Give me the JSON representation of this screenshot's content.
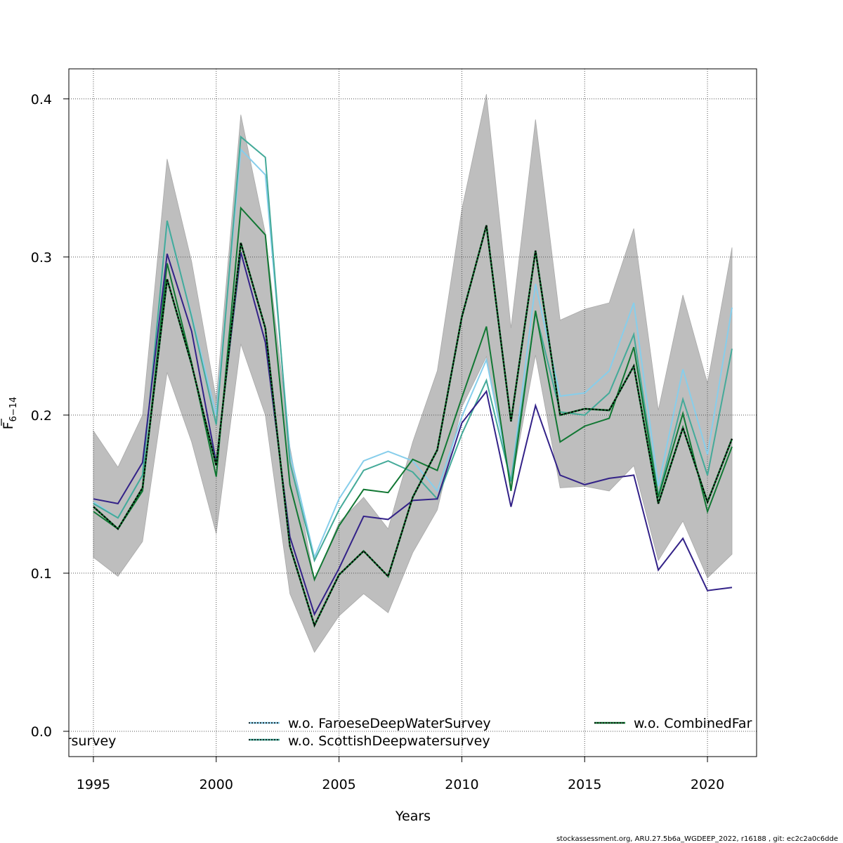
{
  "chart_data": {
    "type": "line",
    "title": "",
    "xlabel": "Years",
    "ylabel_main": "F",
    "ylabel_sub": "6−14",
    "xlim": [
      1994,
      2022
    ],
    "ylim": [
      -0.016,
      0.419
    ],
    "x_ticks": [
      1995,
      2000,
      2005,
      2010,
      2015,
      2020
    ],
    "y_ticks": [
      0.0,
      0.1,
      0.2,
      0.3,
      0.4
    ],
    "y_tick_labels": [
      "0.0",
      "0.1",
      "0.2",
      "0.3",
      "0.4"
    ],
    "grid": true,
    "x": [
      1995,
      1996,
      1997,
      1998,
      1999,
      2000,
      2001,
      2002,
      2003,
      2004,
      2005,
      2006,
      2007,
      2008,
      2009,
      2010,
      2011,
      2012,
      2013,
      2014,
      2015,
      2016,
      2017,
      2018,
      2019,
      2020,
      2021
    ],
    "confidence_band": {
      "color": "#bebebe",
      "lower": [
        0.11,
        0.098,
        0.12,
        0.227,
        0.183,
        0.125,
        0.245,
        0.2,
        0.087,
        0.05,
        0.073,
        0.087,
        0.075,
        0.113,
        0.14,
        0.205,
        0.237,
        0.155,
        0.238,
        0.154,
        0.155,
        0.152,
        0.168,
        0.108,
        0.133,
        0.097,
        0.112
      ],
      "upper": [
        0.19,
        0.167,
        0.2,
        0.362,
        0.297,
        0.21,
        0.39,
        0.315,
        0.18,
        0.095,
        0.132,
        0.148,
        0.128,
        0.183,
        0.228,
        0.33,
        0.403,
        0.255,
        0.387,
        0.26,
        0.267,
        0.271,
        0.318,
        0.203,
        0.276,
        0.22,
        0.306
      ]
    },
    "series": [
      {
        "color": "#87ceeb",
        "width": 2,
        "values": [
          0.145,
          0.135,
          0.162,
          0.322,
          0.263,
          0.2,
          0.368,
          0.352,
          0.176,
          0.11,
          0.147,
          0.171,
          0.177,
          0.171,
          0.152,
          0.199,
          0.235,
          0.158,
          0.283,
          0.212,
          0.214,
          0.228,
          0.271,
          0.155,
          0.229,
          0.175,
          0.268
        ]
      },
      {
        "color": "#44aa99",
        "width": 2,
        "values": [
          0.144,
          0.135,
          0.162,
          0.323,
          0.262,
          0.194,
          0.376,
          0.363,
          0.17,
          0.108,
          0.14,
          0.165,
          0.171,
          0.164,
          0.147,
          0.188,
          0.222,
          0.158,
          0.265,
          0.202,
          0.2,
          0.214,
          0.251,
          0.149,
          0.21,
          0.162,
          0.242
        ]
      },
      {
        "color": "#117733",
        "width": 2,
        "values": [
          0.139,
          0.128,
          0.152,
          0.296,
          0.233,
          0.161,
          0.331,
          0.314,
          0.156,
          0.096,
          0.13,
          0.153,
          0.151,
          0.172,
          0.165,
          0.211,
          0.256,
          0.152,
          0.266,
          0.183,
          0.193,
          0.198,
          0.243,
          0.148,
          0.201,
          0.139,
          0.18
        ]
      },
      {
        "color": "#332288",
        "width": 2,
        "values": [
          0.147,
          0.144,
          0.17,
          0.302,
          0.253,
          0.17,
          0.303,
          0.246,
          0.123,
          0.074,
          0.103,
          0.136,
          0.134,
          0.146,
          0.147,
          0.195,
          0.215,
          0.142,
          0.206,
          0.162,
          0.156,
          0.16,
          0.162,
          0.102,
          0.122,
          0.089,
          0.091
        ]
      },
      {
        "color": "#000000",
        "width": 2,
        "dash": "3,2",
        "values": [
          0.142,
          0.128,
          0.154,
          0.286,
          0.232,
          0.168,
          0.309,
          0.255,
          0.117,
          0.067,
          0.099,
          0.114,
          0.098,
          0.148,
          0.178,
          0.262,
          0.32,
          0.196,
          0.304,
          0.2,
          0.204,
          0.203,
          0.231,
          0.144,
          0.192,
          0.145,
          0.185
        ]
      }
    ],
    "legend": {
      "placement": "bottom",
      "entries": [
        {
          "label": "w.o. FaroeseDeepWaterSurvey",
          "line_color": "#87ceeb"
        },
        {
          "label": "w.o. ScottishDeepwatersurvey",
          "line_color": "#44aa99"
        },
        {
          "label": "w.o. CombinedFar",
          "line_color": "#117733"
        },
        {
          "label": "ersurvey",
          "line_color": ""
        }
      ]
    },
    "footer": "stockassessment.org, ARU.27.5b6a_WGDEEP_2022, r16188 , git: ec2c2a0c6dde"
  }
}
